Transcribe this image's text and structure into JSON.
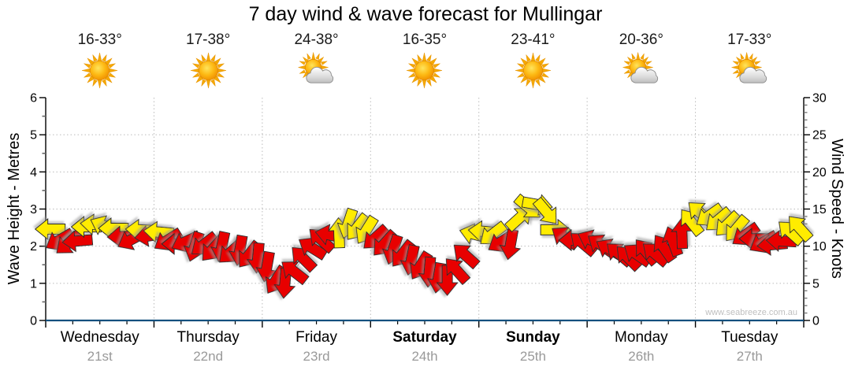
{
  "title": "7 day wind & wave forecast for Mullingar",
  "watermark": "www.seabreeze.com.au",
  "left_axis_title": "Wave Height - Metres",
  "right_axis_title": "Wind Speed - Knots",
  "colors": {
    "arrow_yellow": "#FFEC00",
    "arrow_red": "#E80000",
    "arrow_outline": "#2b2b2b",
    "arrow_shadow": "#999999",
    "wind_trace_line": "#aaaaaa",
    "wave_line_blue": "#14507E",
    "grid_dotted": "#bbbbbb",
    "axis_black": "#000000",
    "minor_tick_gray": "#666666",
    "date_gray": "#999999",
    "watermark_gray": "#bfbfbf"
  },
  "days": [
    {
      "name": "Wednesday",
      "date": "21st",
      "temp": "16-33°",
      "icon": "sunny",
      "bold": false
    },
    {
      "name": "Thursday",
      "date": "22nd",
      "temp": "17-38°",
      "icon": "sunny",
      "bold": false
    },
    {
      "name": "Friday",
      "date": "23rd",
      "temp": "24-38°",
      "icon": "partly-cloudy",
      "bold": false
    },
    {
      "name": "Saturday",
      "date": "24th",
      "temp": "16-35°",
      "icon": "sunny",
      "bold": true
    },
    {
      "name": "Sunday",
      "date": "25th",
      "temp": "23-41°",
      "icon": "sunny",
      "bold": true
    },
    {
      "name": "Monday",
      "date": "26th",
      "temp": "20-36°",
      "icon": "partly-cloudy",
      "bold": false
    },
    {
      "name": "Tuesday",
      "date": "27th",
      "temp": "17-33°",
      "icon": "partly-cloudy",
      "bold": false
    }
  ],
  "chart_data": {
    "type": "scatter",
    "marker": "directional-wind-arrows",
    "title": "7 day wind & wave forecast for Mullingar",
    "y_left": {
      "label": "Wave Height - Metres",
      "min": 0,
      "max": 6,
      "major_tick": 1,
      "minor_tick": 0.5,
      "gridlines": [
        1,
        2,
        3,
        4,
        5
      ]
    },
    "y_right": {
      "label": "Wind Speed - Knots",
      "min": 0,
      "max": 30,
      "major_tick": 5,
      "minor_tick": 1,
      "gridlines": [
        5,
        10,
        15,
        20,
        25
      ]
    },
    "x": {
      "categories": [
        "Wednesday 21st",
        "Thursday 22nd",
        "Friday 23rd",
        "Saturday 24th",
        "Sunday 25th",
        "Monday 26th",
        "Tuesday 27th"
      ],
      "slots_per_day": 12,
      "minor_ticks_per_day": 4,
      "vertical_gridlines": "day boundaries, dotted"
    },
    "wave_height_series": {
      "shape": "flat line along x-axis",
      "value_m": 0
    },
    "wind_arrows": {
      "format": [
        "knots",
        "rotation_deg_clockwise_from_pointing_right",
        "color y=yellow r=red"
      ],
      "data_by_day": [
        [
          [
            12.3,
            180,
            "y"
          ],
          [
            10.8,
            150,
            "r"
          ],
          [
            10.4,
            140,
            "r"
          ],
          [
            10.7,
            175,
            "r"
          ],
          [
            12.6,
            180,
            "y"
          ],
          [
            12.9,
            185,
            "y"
          ],
          [
            12.7,
            205,
            "y"
          ],
          [
            12.4,
            180,
            "y"
          ],
          [
            11.3,
            178,
            "r"
          ],
          [
            10.9,
            152,
            "r"
          ],
          [
            12.2,
            183,
            "y"
          ],
          [
            11.4,
            172,
            "r"
          ]
        ],
        [
          [
            11.9,
            185,
            "y"
          ],
          [
            10.8,
            148,
            "r"
          ],
          [
            10.3,
            180,
            "r"
          ],
          [
            10.6,
            155,
            "r"
          ],
          [
            9.9,
            108,
            "r"
          ],
          [
            10.2,
            142,
            "r"
          ],
          [
            9.6,
            132,
            "r"
          ],
          [
            9.9,
            102,
            "r"
          ],
          [
            9.2,
            138,
            "r"
          ],
          [
            9.4,
            100,
            "r"
          ],
          [
            8.8,
            128,
            "r"
          ],
          [
            8.4,
            95,
            "r"
          ]
        ],
        [
          [
            7.2,
            100,
            "r"
          ],
          [
            5.4,
            122,
            "r"
          ],
          [
            5.0,
            95,
            "r"
          ],
          [
            6.6,
            218,
            "r"
          ],
          [
            8.4,
            225,
            "r"
          ],
          [
            9.8,
            212,
            "r"
          ],
          [
            10.9,
            222,
            "r"
          ],
          [
            11.5,
            192,
            "r"
          ],
          [
            11.8,
            268,
            "y"
          ],
          [
            13.0,
            108,
            "y"
          ],
          [
            12.5,
            128,
            "y"
          ],
          [
            12.1,
            122,
            "y"
          ]
        ],
        [
          [
            11.1,
            138,
            "r"
          ],
          [
            10.3,
            132,
            "r"
          ],
          [
            9.5,
            108,
            "r"
          ],
          [
            8.9,
            128,
            "r"
          ],
          [
            8.1,
            102,
            "r"
          ],
          [
            7.3,
            122,
            "r"
          ],
          [
            6.5,
            95,
            "r"
          ],
          [
            5.7,
            100,
            "r"
          ],
          [
            5.4,
            90,
            "r"
          ],
          [
            6.8,
            228,
            "r"
          ],
          [
            8.8,
            222,
            "r"
          ],
          [
            11.6,
            195,
            "y"
          ]
        ],
        [
          [
            12.0,
            185,
            "y"
          ],
          [
            11.6,
            142,
            "y"
          ],
          [
            10.6,
            148,
            "r"
          ],
          [
            10.2,
            100,
            "r"
          ],
          [
            13.8,
            318,
            "y"
          ],
          [
            15.2,
            40,
            "y"
          ],
          [
            15.6,
            10,
            "y"
          ],
          [
            14.6,
            50,
            "y"
          ],
          [
            12.2,
            0,
            "y"
          ],
          [
            11.2,
            215,
            "r"
          ],
          [
            10.8,
            180,
            "r"
          ],
          [
            10.4,
            220,
            "r"
          ]
        ],
        [
          [
            10.8,
            205,
            "r"
          ],
          [
            10.2,
            215,
            "r"
          ],
          [
            9.6,
            210,
            "r"
          ],
          [
            9.0,
            220,
            "r"
          ],
          [
            8.5,
            225,
            "r"
          ],
          [
            8.9,
            215,
            "r"
          ],
          [
            9.3,
            230,
            "r"
          ],
          [
            9.0,
            220,
            "r"
          ],
          [
            9.8,
            235,
            "r"
          ],
          [
            10.7,
            250,
            "r"
          ],
          [
            11.7,
            268,
            "r"
          ],
          [
            13.3,
            232,
            "y"
          ]
        ],
        [
          [
            14.5,
            222,
            "y"
          ],
          [
            14.1,
            145,
            "y"
          ],
          [
            13.5,
            140,
            "y"
          ],
          [
            12.9,
            135,
            "y"
          ],
          [
            12.3,
            130,
            "y"
          ],
          [
            11.5,
            145,
            "r"
          ],
          [
            11.0,
            180,
            "r"
          ],
          [
            10.5,
            150,
            "r"
          ],
          [
            10.2,
            175,
            "r"
          ],
          [
            10.7,
            183,
            "r"
          ],
          [
            11.9,
            222,
            "y"
          ],
          [
            12.5,
            228,
            "y"
          ]
        ]
      ]
    }
  }
}
